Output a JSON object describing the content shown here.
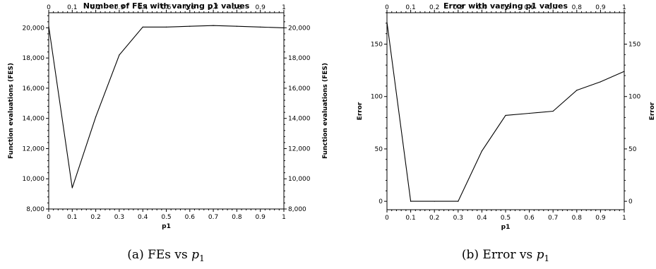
{
  "chart_data": [
    {
      "type": "line",
      "title": "Number of FEs with varying p1 values",
      "xlabel": "p1",
      "ylabel": "Function evaluations (FES)",
      "ylabel_right": "Function evaluations (FES)",
      "xlim": [
        0,
        1
      ],
      "ylim": [
        8000,
        21000
      ],
      "x_ticks": [
        "0",
        "0.1",
        "0.2",
        "0.3",
        "0.4",
        "0.5",
        "0.6",
        "0.7",
        "0.8",
        "0.9",
        "1"
      ],
      "y_ticks": [
        8000,
        10000,
        12000,
        14000,
        16000,
        18000,
        20000
      ],
      "y_tick_labels": [
        "8,000",
        "10,000",
        "12,000",
        "14,000",
        "16,000",
        "18,000",
        "20,000"
      ],
      "grid": false,
      "x": [
        0,
        0.1,
        0.2,
        0.3,
        0.4,
        0.5,
        0.6,
        0.7,
        0.8,
        0.9,
        1
      ],
      "values": [
        20100,
        9400,
        14100,
        18200,
        20050,
        20050,
        20100,
        20150,
        20100,
        20050,
        20000
      ],
      "caption": {
        "prefix": "(a) FEs vs ",
        "var": "p",
        "sub": "1"
      }
    },
    {
      "type": "line",
      "title": "Error with varying p1 values",
      "xlabel": "p1",
      "ylabel": "Error",
      "ylabel_right": "Error",
      "xlim": [
        0,
        1
      ],
      "ylim": [
        -8,
        180
      ],
      "x_ticks": [
        "0",
        "0.1",
        "0.2",
        "0.3",
        "0.4",
        "0.5",
        "0.6",
        "0.7",
        "0.8",
        "0.9",
        "1"
      ],
      "y_ticks": [
        0,
        50,
        100,
        150
      ],
      "y_tick_labels": [
        "0",
        "50",
        "100",
        "150"
      ],
      "grid": false,
      "x": [
        0,
        0.1,
        0.2,
        0.3,
        0.4,
        0.5,
        0.6,
        0.7,
        0.8,
        0.9,
        1
      ],
      "values": [
        171,
        0,
        0,
        0,
        48,
        82,
        84,
        86,
        106,
        114,
        124
      ],
      "caption": {
        "prefix": "(b) Error vs ",
        "var": "p",
        "sub": "1"
      }
    }
  ]
}
